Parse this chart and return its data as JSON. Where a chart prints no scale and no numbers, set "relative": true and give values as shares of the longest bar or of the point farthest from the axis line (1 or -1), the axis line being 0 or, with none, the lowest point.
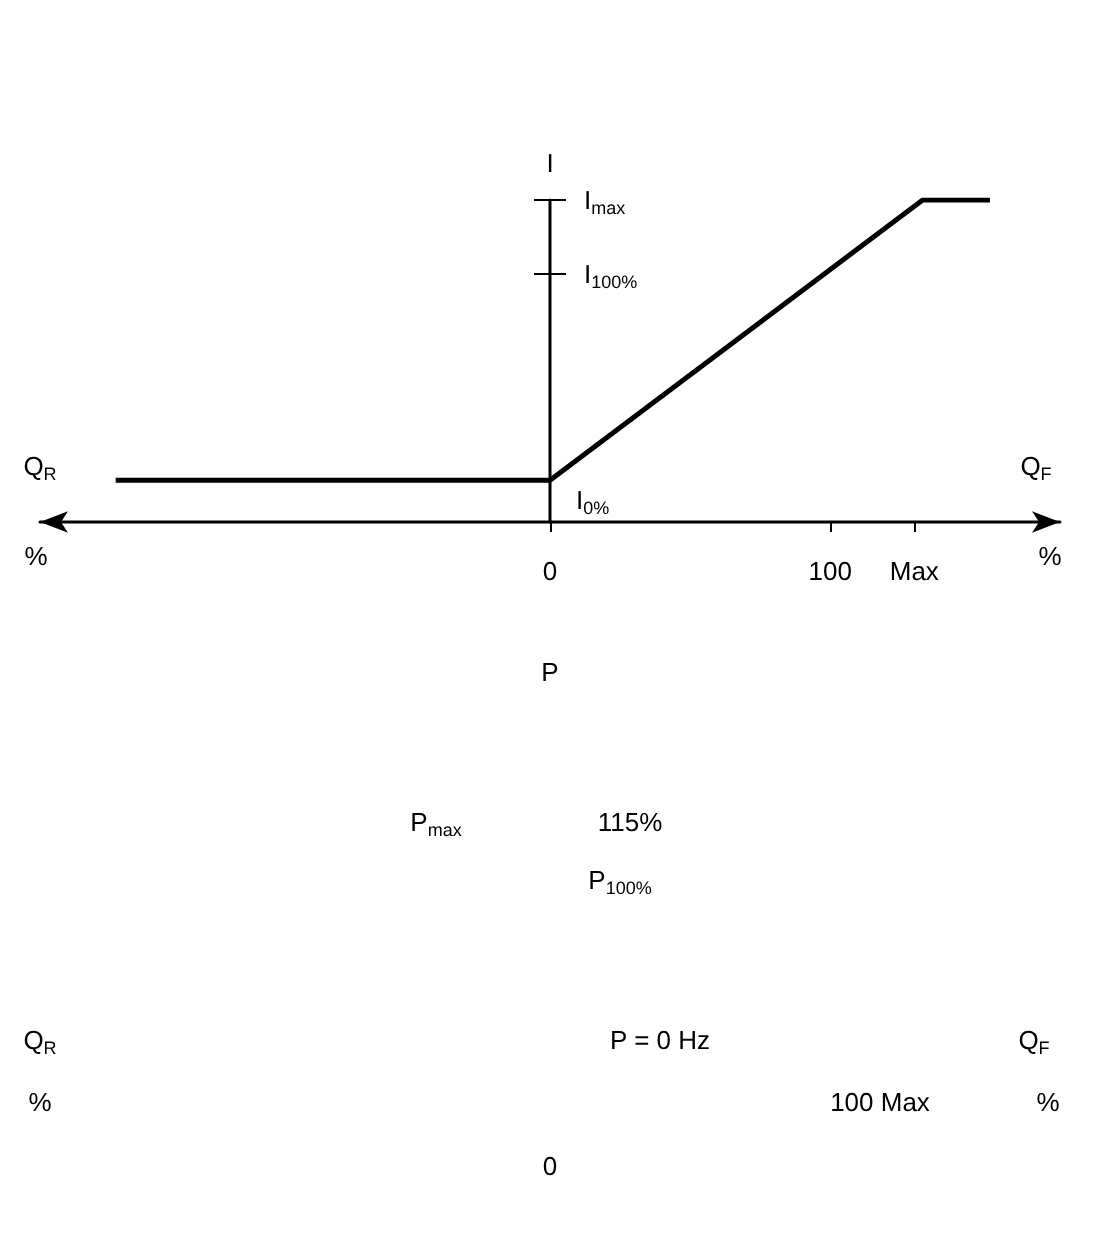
{
  "chart_data": {
    "type": "line",
    "ylabel": "I",
    "relative": true,
    "x": [
      -155,
      0,
      133,
      157
    ],
    "series": [
      {
        "color": "#000000",
        "values": [
          0.13,
          0.13,
          1,
          1
        ]
      }
    ],
    "xlim": [
      -182,
      182
    ],
    "xticks": [
      0,
      100,
      {
        "value": 130,
        "label": "Max"
      }
    ],
    "marker": "none",
    "line_style": "solid",
    "annotations": [
      "I$_{max}$",
      "I$_{100%}$",
      "I$_{0%}$",
      "Q$_{R}$",
      "%",
      "Q$_{F}$",
      "%",
      "P",
      "P$_{max}$",
      "115%",
      "P$_{100%}$",
      "Q$_{R}$",
      "P = 0 Hz",
      "Q$_{F}$",
      "%",
      "100 Max",
      "%",
      "0"
    ]
  }
}
